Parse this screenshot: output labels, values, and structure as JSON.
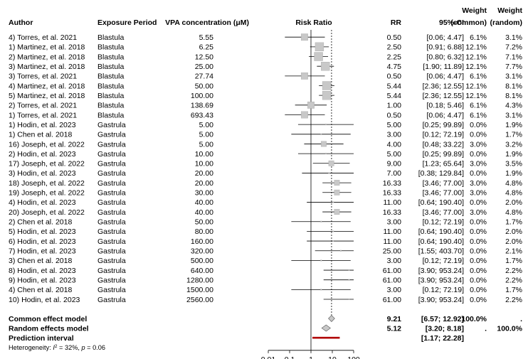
{
  "chart_data": {
    "type": "forest",
    "columns": {
      "author": "Author",
      "exposure": "Exposure Period",
      "vpa": "VPA concentration (μM)",
      "plot": "Risk Ratio",
      "rr": "RR",
      "ci": "95%-CI",
      "w_common": [
        "Weight",
        "(common)"
      ],
      "w_random": [
        "Weight",
        "(random)"
      ]
    },
    "x_axis": {
      "scale": "log",
      "ticks": [
        0.01,
        0.1,
        1,
        10,
        100
      ],
      "tick_labels": [
        "0.01",
        "0.1",
        "1",
        "10",
        "100"
      ],
      "null_value": 1,
      "pooled_reference": 9.21
    },
    "studies": [
      {
        "author": "4) Torres, et al. 2021",
        "exposure": "Blastula",
        "vpa": "5.55",
        "rr": 0.5,
        "lo": 0.06,
        "hi": 4.47,
        "rr_text": "0.50",
        "ci_text": "[0.06; 4.47]",
        "w_common": "6.1%",
        "w_random": "3.1%",
        "w_fixed_val": 6.1
      },
      {
        "author": "1) Martinez, et al. 2018",
        "exposure": "Blastula",
        "vpa": "6.25",
        "rr": 2.5,
        "lo": 0.91,
        "hi": 6.88,
        "rr_text": "2.50",
        "ci_text": "[0.91; 6.88]",
        "w_common": "12.1%",
        "w_random": "7.2%",
        "w_fixed_val": 12.1
      },
      {
        "author": "2) Martinez, et al. 2018",
        "exposure": "Blastula",
        "vpa": "12.50",
        "rr": 2.25,
        "lo": 0.8,
        "hi": 6.32,
        "rr_text": "2.25",
        "ci_text": "[0.80; 6.32]",
        "w_common": "12.1%",
        "w_random": "7.1%",
        "w_fixed_val": 12.1
      },
      {
        "author": "3) Martinez, et al. 2018",
        "exposure": "Blastula",
        "vpa": "25.00",
        "rr": 4.75,
        "lo": 1.9,
        "hi": 11.89,
        "rr_text": "4.75",
        "ci_text": "[1.90; 11.89]",
        "w_common": "12.1%",
        "w_random": "7.7%",
        "w_fixed_val": 12.1
      },
      {
        "author": "3) Torres, et al. 2021",
        "exposure": "Blastula",
        "vpa": "27.74",
        "rr": 0.5,
        "lo": 0.06,
        "hi": 4.47,
        "rr_text": "0.50",
        "ci_text": "[0.06; 4.47]",
        "w_common": "6.1%",
        "w_random": "3.1%",
        "w_fixed_val": 6.1
      },
      {
        "author": "4) Martinez, et al. 2018",
        "exposure": "Blastula",
        "vpa": "50.00",
        "rr": 5.44,
        "lo": 2.36,
        "hi": 12.55,
        "rr_text": "5.44",
        "ci_text": "[2.36; 12.55]",
        "w_common": "12.1%",
        "w_random": "8.1%",
        "w_fixed_val": 12.1
      },
      {
        "author": "5) Martinez, et al. 2018",
        "exposure": "Blastula",
        "vpa": "100.00",
        "rr": 5.44,
        "lo": 2.36,
        "hi": 12.55,
        "rr_text": "5.44",
        "ci_text": "[2.36; 12.55]",
        "w_common": "12.1%",
        "w_random": "8.1%",
        "w_fixed_val": 12.1
      },
      {
        "author": "2) Torres, et al. 2021",
        "exposure": "Blastula",
        "vpa": "138.69",
        "rr": 1.0,
        "lo": 0.18,
        "hi": 5.46,
        "rr_text": "1.00",
        "ci_text": "[0.18; 5.46]",
        "w_common": "6.1%",
        "w_random": "4.3%",
        "w_fixed_val": 6.1
      },
      {
        "author": "1) Torres, et al. 2021",
        "exposure": "Blastula",
        "vpa": "693.43",
        "rr": 0.5,
        "lo": 0.06,
        "hi": 4.47,
        "rr_text": "0.50",
        "ci_text": "[0.06; 4.47]",
        "w_common": "6.1%",
        "w_random": "3.1%",
        "w_fixed_val": 6.1
      },
      {
        "author": "1) Hodin, et al. 2023",
        "exposure": "Gastrula",
        "vpa": "5.00",
        "rr": 5.0,
        "lo": 0.25,
        "hi": 99.89,
        "rr_text": "5.00",
        "ci_text": "[0.25; 99.89]",
        "w_common": "0.0%",
        "w_random": "1.9%",
        "w_fixed_val": 0
      },
      {
        "author": "1) Chen et al. 2018",
        "exposure": "Gastrula",
        "vpa": "5.00",
        "rr": 3.0,
        "lo": 0.12,
        "hi": 72.19,
        "rr_text": "3.00",
        "ci_text": "[0.12; 72.19]",
        "w_common": "0.0%",
        "w_random": "1.7%",
        "w_fixed_val": 0
      },
      {
        "author": "16) Joseph, et al. 2022",
        "exposure": "Gastrula",
        "vpa": "5.00",
        "rr": 4.0,
        "lo": 0.48,
        "hi": 33.22,
        "rr_text": "4.00",
        "ci_text": "[0.48; 33.22]",
        "w_common": "3.0%",
        "w_random": "3.2%",
        "w_fixed_val": 3.0
      },
      {
        "author": "2) Hodin, et al. 2023",
        "exposure": "Gastrula",
        "vpa": "10.00",
        "rr": 5.0,
        "lo": 0.25,
        "hi": 99.89,
        "rr_text": "5.00",
        "ci_text": "[0.25; 99.89]",
        "w_common": "0.0%",
        "w_random": "1.9%",
        "w_fixed_val": 0
      },
      {
        "author": "17) Joseph, et al. 2022",
        "exposure": "Gastrula",
        "vpa": "10.00",
        "rr": 9.0,
        "lo": 1.23,
        "hi": 65.64,
        "rr_text": "9.00",
        "ci_text": "[1.23; 65.64]",
        "w_common": "3.0%",
        "w_random": "3.5%",
        "w_fixed_val": 3.0
      },
      {
        "author": "3) Hodin, et al. 2023",
        "exposure": "Gastrula",
        "vpa": "20.00",
        "rr": 7.0,
        "lo": 0.38,
        "hi": 129.84,
        "rr_text": "7.00",
        "ci_text": "[0.38; 129.84]",
        "w_common": "0.0%",
        "w_random": "1.9%",
        "w_fixed_val": 0
      },
      {
        "author": "18) Joseph, et al. 2022",
        "exposure": "Gastrula",
        "vpa": "20.00",
        "rr": 16.33,
        "lo": 3.46,
        "hi": 77.0,
        "rr_text": "16.33",
        "ci_text": "[3.46; 77.00]",
        "w_common": "3.0%",
        "w_random": "4.8%",
        "w_fixed_val": 3.0
      },
      {
        "author": "19) Joseph, et al. 2022",
        "exposure": "Gastrula",
        "vpa": "30.00",
        "rr": 16.33,
        "lo": 3.46,
        "hi": 77.0,
        "rr_text": "16.33",
        "ci_text": "[3.46; 77.00]",
        "w_common": "3.0%",
        "w_random": "4.8%",
        "w_fixed_val": 3.0
      },
      {
        "author": "4) Hodin, et al. 2023",
        "exposure": "Gastrula",
        "vpa": "40.00",
        "rr": 11.0,
        "lo": 0.64,
        "hi": 190.4,
        "rr_text": "11.00",
        "ci_text": "[0.64; 190.40]",
        "w_common": "0.0%",
        "w_random": "2.0%",
        "w_fixed_val": 0
      },
      {
        "author": "20) Joseph, et al. 2022",
        "exposure": "Gastrula",
        "vpa": "40.00",
        "rr": 16.33,
        "lo": 3.46,
        "hi": 77.0,
        "rr_text": "16.33",
        "ci_text": "[3.46; 77.00]",
        "w_common": "3.0%",
        "w_random": "4.8%",
        "w_fixed_val": 3.0
      },
      {
        "author": "2) Chen et al. 2018",
        "exposure": "Gastrula",
        "vpa": "50.00",
        "rr": 3.0,
        "lo": 0.12,
        "hi": 72.19,
        "rr_text": "3.00",
        "ci_text": "[0.12; 72.19]",
        "w_common": "0.0%",
        "w_random": "1.7%",
        "w_fixed_val": 0
      },
      {
        "author": "5) Hodin, et al. 2023",
        "exposure": "Gastrula",
        "vpa": "80.00",
        "rr": 11.0,
        "lo": 0.64,
        "hi": 190.4,
        "rr_text": "11.00",
        "ci_text": "[0.64; 190.40]",
        "w_common": "0.0%",
        "w_random": "2.0%",
        "w_fixed_val": 0
      },
      {
        "author": "6) Hodin, et al. 2023",
        "exposure": "Gastrula",
        "vpa": "160.00",
        "rr": 11.0,
        "lo": 0.64,
        "hi": 190.4,
        "rr_text": "11.00",
        "ci_text": "[0.64; 190.40]",
        "w_common": "0.0%",
        "w_random": "2.0%",
        "w_fixed_val": 0
      },
      {
        "author": "7) Hodin, et al. 2023",
        "exposure": "Gastrula",
        "vpa": "320.00",
        "rr": 25.0,
        "lo": 1.55,
        "hi": 403.7,
        "rr_text": "25.00",
        "ci_text": "[1.55; 403.70]",
        "w_common": "0.0%",
        "w_random": "2.1%",
        "w_fixed_val": 0
      },
      {
        "author": "3) Chen et al. 2018",
        "exposure": "Gastrula",
        "vpa": "500.00",
        "rr": 3.0,
        "lo": 0.12,
        "hi": 72.19,
        "rr_text": "3.00",
        "ci_text": "[0.12; 72.19]",
        "w_common": "0.0%",
        "w_random": "1.7%",
        "w_fixed_val": 0
      },
      {
        "author": "8) Hodin, et al. 2023",
        "exposure": "Gastrula",
        "vpa": "640.00",
        "rr": 61.0,
        "lo": 3.9,
        "hi": 953.24,
        "rr_text": "61.00",
        "ci_text": "[3.90; 953.24]",
        "w_common": "0.0%",
        "w_random": "2.2%",
        "w_fixed_val": 0
      },
      {
        "author": "9) Hodin, et al. 2023",
        "exposure": "Gastrula",
        "vpa": "1280.00",
        "rr": 61.0,
        "lo": 3.9,
        "hi": 953.24,
        "rr_text": "61.00",
        "ci_text": "[3.90; 953.24]",
        "w_common": "0.0%",
        "w_random": "2.2%",
        "w_fixed_val": 0
      },
      {
        "author": "4) Chen et al. 2018",
        "exposure": "Gastrula",
        "vpa": "1500.00",
        "rr": 3.0,
        "lo": 0.12,
        "hi": 72.19,
        "rr_text": "3.00",
        "ci_text": "[0.12; 72.19]",
        "w_common": "0.0%",
        "w_random": "1.7%",
        "w_fixed_val": 0
      },
      {
        "author": "10) Hodin, et al. 2023",
        "exposure": "Gastrula",
        "vpa": "2560.00",
        "rr": 61.0,
        "lo": 3.9,
        "hi": 953.24,
        "rr_text": "61.00",
        "ci_text": "[3.90; 953.24]",
        "w_common": "0.0%",
        "w_random": "2.2%",
        "w_fixed_val": 0
      }
    ],
    "summary": [
      {
        "label": "Common effect model",
        "rr": 9.21,
        "lo": 6.57,
        "hi": 12.92,
        "rr_text": "9.21",
        "ci_text": "[6.57; 12.92]",
        "w_common": "100.0%",
        "w_random": "."
      },
      {
        "label": "Random effects model",
        "rr": 5.12,
        "lo": 3.2,
        "hi": 8.18,
        "rr_text": "5.12",
        "ci_text": "[3.20; 8.18]",
        "w_common": ".",
        "w_random": "100.0%"
      }
    ],
    "prediction": {
      "label": "Prediction interval",
      "lo": 1.17,
      "hi": 22.28,
      "ci_text": "[1.17; 22.28]"
    },
    "heterogeneity": {
      "prefix": "Heterogeneity: ",
      "i2_symbol": "I",
      "i2_sup": "2",
      "i2_value": " = 32%, ",
      "p_symbol": "p",
      "p_value": " = 0.06"
    },
    "colors": {
      "box": "#c8c8c8",
      "diamond": "#c8c8c8",
      "prediction": "#b00000",
      "line": "#000000"
    }
  }
}
